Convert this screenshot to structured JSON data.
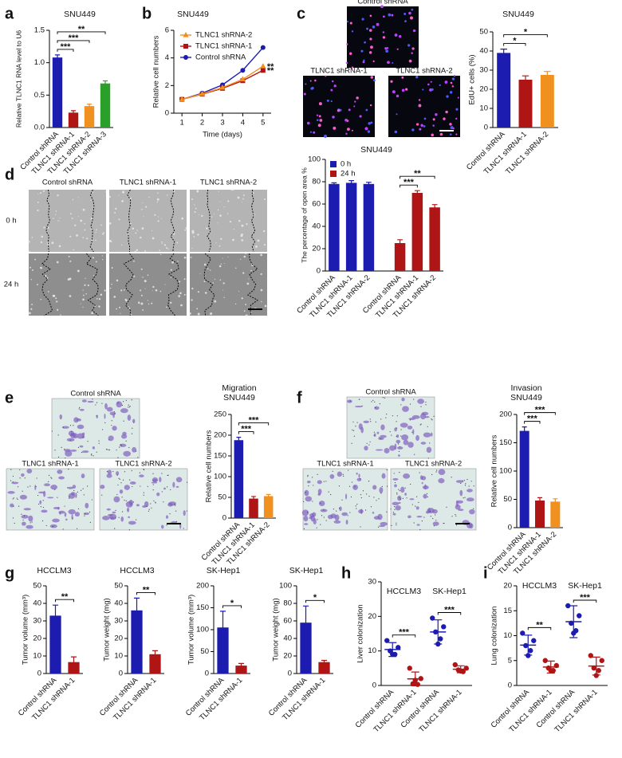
{
  "chart_data": [
    {
      "panel": "a",
      "type": "bar",
      "title": "SNU449",
      "y_label": "Relative TLNC1 RNA level to U6",
      "categories": [
        "Control shRNA",
        "TLNC1 shRNA-1",
        "TLNC1 shRNA-2",
        "TLNC1 shRNA-3"
      ],
      "values": [
        1.08,
        0.23,
        0.33,
        0.68
      ],
      "errors": [
        0.04,
        0.03,
        0.03,
        0.04
      ],
      "colors": [
        "#1c1cb0",
        "#b01515",
        "#f0901e",
        "#2aa02a"
      ],
      "ylim": [
        0,
        1.5
      ],
      "yticks": [
        {
          "value": 0,
          "label": "0.0"
        },
        {
          "value": 0.5,
          "label": "0.5"
        },
        {
          "value": 1,
          "label": "1.0"
        },
        {
          "value": 1.5,
          "label": "1.5"
        }
      ],
      "comparisons": [
        {
          "label": "***",
          "groups": [
            0,
            1
          ]
        },
        {
          "label": "***",
          "groups": [
            0,
            2
          ]
        },
        {
          "label": "**",
          "groups": [
            0,
            3
          ]
        }
      ]
    },
    {
      "panel": "b",
      "type": "line",
      "title": "SNU449",
      "x_label": "Time (days)",
      "y_label": "Relative cell numbers",
      "x": [
        1,
        2,
        3,
        4,
        5
      ],
      "xlim": [
        0.6,
        5.4
      ],
      "xticks": [
        1,
        2,
        3,
        4,
        5
      ],
      "ylim": [
        0,
        6
      ],
      "yticks": [
        0,
        2,
        4,
        6
      ],
      "series": [
        {
          "name": "TLNC1 shRNA-2",
          "color": "#f0901e",
          "marker": "triangle",
          "values": [
            1,
            1.4,
            1.85,
            2.45,
            3.4
          ]
        },
        {
          "name": "TLNC1 shRNA-1",
          "color": "#b01515",
          "marker": "square",
          "values": [
            1,
            1.38,
            1.8,
            2.35,
            3.1
          ]
        },
        {
          "name": "Control shRNA",
          "color": "#1c1cb0",
          "marker": "circle",
          "values": [
            1,
            1.45,
            2.05,
            3.1,
            4.75
          ]
        }
      ],
      "annotations": [
        "**",
        "**"
      ]
    },
    {
      "panel": "c",
      "type": "bar",
      "title": "SNU449",
      "y_label": "EdU+ cells (%)",
      "categories": [
        "Control shRNA",
        "TLNC1 shRNA-1",
        "TLNC1 shRNA-2"
      ],
      "values": [
        39,
        25,
        27.5
      ],
      "errors": [
        2,
        2,
        1.8
      ],
      "colors": [
        "#1c1cb0",
        "#b01515",
        "#f0901e"
      ],
      "ylim": [
        0,
        50
      ],
      "yticks": [
        0,
        10,
        20,
        30,
        40,
        50
      ],
      "comparisons": [
        {
          "label": "*",
          "groups": [
            0,
            1
          ]
        },
        {
          "label": "*",
          "groups": [
            0,
            2
          ]
        }
      ]
    },
    {
      "panel": "d",
      "type": "bar",
      "title": "SNU449",
      "y_label": "The percentage of open area %",
      "categories": [
        "Control shRNA",
        "TLNC1 shRNA-1",
        "TLNC1 shRNA-2",
        "Control shRNA",
        "TLNC1 shRNA-1",
        "TLNC1 shRNA-2"
      ],
      "series": [
        {
          "name": "0 h",
          "color": "#1c1cb0",
          "values": [
            78,
            79,
            78,
            null,
            null,
            null
          ],
          "errors": [
            1,
            2,
            1.5,
            null,
            null,
            null
          ]
        },
        {
          "name": "24 h",
          "color": "#b01515",
          "values": [
            null,
            null,
            null,
            25,
            70,
            57
          ],
          "errors": [
            null,
            null,
            null,
            3,
            2,
            2.5
          ]
        }
      ],
      "ylim": [
        0,
        100
      ],
      "yticks": [
        0,
        20,
        40,
        60,
        80,
        100
      ],
      "comparisons": [
        {
          "label": "***",
          "groups": [
            3,
            4
          ]
        },
        {
          "label": "**",
          "groups": [
            3,
            5
          ]
        }
      ]
    },
    {
      "panel": "e",
      "type": "bar",
      "title": "Migration",
      "subtitle": "SNU449",
      "y_label": "Relative cell numbers",
      "categories": [
        "Control shRNA",
        "TLNC1 shRNA-1",
        "TLNC1 shRNA-2"
      ],
      "values": [
        188,
        47,
        53
      ],
      "errors": [
        7,
        5,
        4
      ],
      "colors": [
        "#1c1cb0",
        "#b01515",
        "#f0901e"
      ],
      "ylim": [
        0,
        250
      ],
      "yticks": [
        0,
        50,
        100,
        150,
        200,
        250
      ],
      "comparisons": [
        {
          "label": "***",
          "groups": [
            0,
            1
          ]
        },
        {
          "label": "***",
          "groups": [
            0,
            2
          ]
        }
      ]
    },
    {
      "panel": "f",
      "type": "bar",
      "title": "Invasion",
      "subtitle": "SNU449",
      "y_label": "Relative cell numbers",
      "categories": [
        "Control shRNA",
        "TLNC1 shRNA-1",
        "TLNC1 shRNA-2"
      ],
      "values": [
        171,
        48,
        46
      ],
      "errors": [
        7,
        5,
        5
      ],
      "colors": [
        "#1c1cb0",
        "#b01515",
        "#f0901e"
      ],
      "ylim": [
        0,
        200
      ],
      "yticks": [
        0,
        50,
        100,
        150,
        200
      ],
      "comparisons": [
        {
          "label": "***",
          "groups": [
            0,
            1
          ]
        },
        {
          "label": "***",
          "groups": [
            0,
            2
          ]
        }
      ]
    },
    {
      "panel": "g",
      "type": "bar",
      "title": "HCCLM3",
      "y_label": "Tumor volume (mm³)",
      "categories": [
        "Control shRNA",
        "TLNC1 shRNA-1"
      ],
      "values": [
        33,
        6.5
      ],
      "errors": [
        6,
        3
      ],
      "colors": [
        "#1c1cb0",
        "#b01515"
      ],
      "ylim": [
        0,
        50
      ],
      "yticks": [
        0,
        10,
        20,
        30,
        40,
        50
      ],
      "comparisons": [
        {
          "label": "**",
          "groups": [
            0,
            1
          ]
        }
      ]
    },
    {
      "type": "bar",
      "title": "HCCLM3",
      "y_label": "Tumor weight (mg)",
      "categories": [
        "Control shRNA",
        "TLNC1 shRNA-1"
      ],
      "values": [
        36,
        11
      ],
      "errors": [
        7,
        2
      ],
      "colors": [
        "#1c1cb0",
        "#b01515"
      ],
      "ylim": [
        0,
        50
      ],
      "yticks": [
        0,
        10,
        20,
        30,
        40,
        50
      ],
      "comparisons": [
        {
          "label": "**",
          "groups": [
            0,
            1
          ]
        }
      ]
    },
    {
      "type": "bar",
      "title": "SK-Hep1",
      "y_label": "Tumor volume (mm³)",
      "categories": [
        "Control shRNA",
        "TLNC1 shRNA-1"
      ],
      "values": [
        105,
        18
      ],
      "errors": [
        37,
        5
      ],
      "colors": [
        "#1c1cb0",
        "#b01515"
      ],
      "ylim": [
        0,
        200
      ],
      "yticks": [
        0,
        50,
        100,
        150,
        200
      ],
      "comparisons": [
        {
          "label": "*",
          "groups": [
            0,
            1
          ]
        }
      ]
    },
    {
      "type": "bar",
      "title": "SK-Hep1",
      "y_label": "Tumor weight (mg)",
      "categories": [
        "Control shRNA",
        "TLNC1 shRNA-1"
      ],
      "values": [
        58,
        13
      ],
      "errors": [
        19,
        2
      ],
      "colors": [
        "#1c1cb0",
        "#b01515"
      ],
      "ylim": [
        0,
        100
      ],
      "yticks": [
        0,
        20,
        40,
        60,
        80,
        100
      ],
      "comparisons": [
        {
          "label": "*",
          "groups": [
            0,
            1
          ]
        }
      ]
    },
    {
      "panel": "h",
      "type": "dot",
      "y_label": "Liver colonization",
      "group_labels": [
        "HCCLM3",
        "SK-Hep1"
      ],
      "categories": [
        "Control shRNA",
        "TLNC1 shRNA-1",
        "Control shRNA",
        "TLNC1 shRNA-1"
      ],
      "colors": [
        "#1c1cb0",
        "#b01515",
        "#1c1cb0",
        "#b01515"
      ],
      "points": [
        [
          13,
          11,
          10,
          9,
          9
        ],
        [
          5,
          2,
          0.5,
          0.3,
          1.5
        ],
        [
          19.5,
          17,
          15.5,
          13.5,
          12
        ],
        [
          6,
          5,
          4.5,
          4,
          4.2
        ]
      ],
      "values": [
        10.4,
        1.9,
        15.5,
        4.7
      ],
      "errors": [
        2,
        2,
        3.5,
        1
      ],
      "ylim": [
        0,
        30
      ],
      "yticks": [
        0,
        10,
        20,
        30
      ],
      "comparisons": [
        {
          "label": "***",
          "groups": [
            0,
            1
          ]
        },
        {
          "label": "***",
          "groups": [
            2,
            3
          ]
        }
      ]
    },
    {
      "panel": "i",
      "type": "dot",
      "y_label": "Lung colonization",
      "group_labels": [
        "HCCLM3",
        "SK-Hep1"
      ],
      "categories": [
        "Control shRNA",
        "TLNC1 shRNA-1",
        "Control shRNA",
        "TLNC1 shRNA-1"
      ],
      "colors": [
        "#1c1cb0",
        "#b01515",
        "#1c1cb0",
        "#b01515"
      ],
      "points": [
        [
          10.5,
          9,
          8,
          7,
          6
        ],
        [
          5,
          4,
          3.5,
          3,
          3
        ],
        [
          16,
          14,
          12.5,
          11,
          10.5
        ],
        [
          6,
          5,
          3.5,
          3,
          2
        ]
      ],
      "values": [
        8.1,
        3.7,
        12.8,
        3.9
      ],
      "errors": [
        2,
        1.2,
        3.2,
        1.8
      ],
      "ylim": [
        0,
        20
      ],
      "yticks": [
        0,
        5,
        10,
        15,
        20
      ],
      "comparisons": [
        {
          "label": "**",
          "groups": [
            0,
            1
          ]
        },
        {
          "label": "***",
          "groups": [
            2,
            3
          ]
        }
      ]
    }
  ],
  "images": [
    {
      "labels": [
        "Control shRNA",
        "TLNC1 shRNA-1",
        "TLNC1 shRNA-2"
      ]
    },
    {
      "labels": [
        "Control shRNA",
        "TLNC1 shRNA-1",
        "TLNC1 shRNA-2"
      ],
      "rows": [
        "0 h",
        "24 h"
      ]
    },
    {
      "labels": [
        "Control shRNA",
        "TLNC1 shRNA-1",
        "TLNC1 shRNA-2"
      ]
    },
    {
      "labels": [
        "Control shRNA",
        "TLNC1 shRNA-1",
        "TLNC1 shRNA-2"
      ]
    }
  ]
}
